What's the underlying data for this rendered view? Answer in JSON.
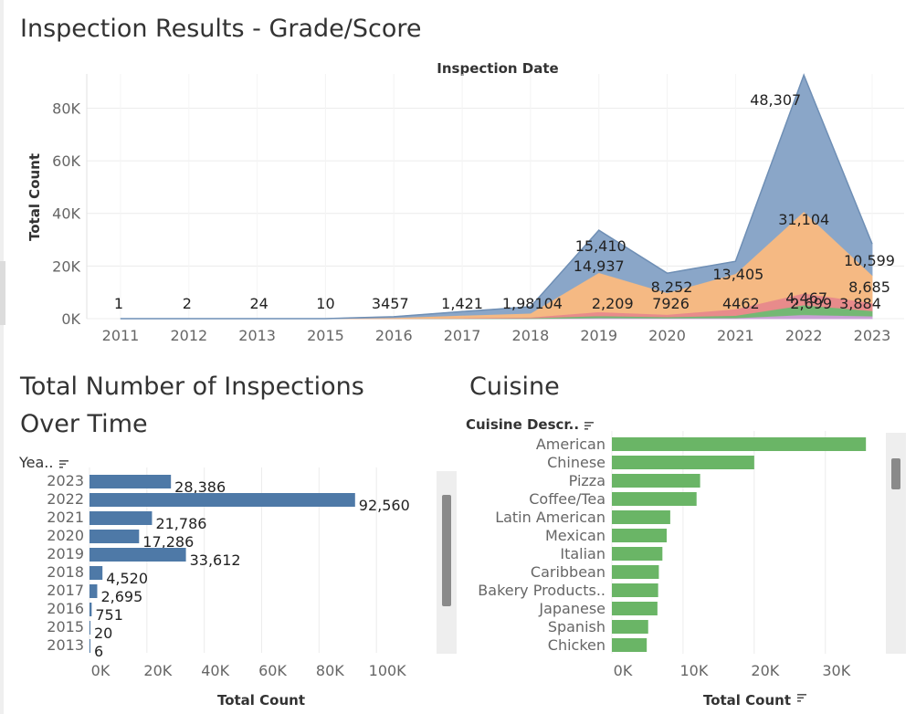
{
  "titles": {
    "inspection_results": "Inspection Results - Grade/Score",
    "total_number_line1": "Total Number of Inspections",
    "total_number_line2": "Over Time",
    "cuisine": "Cuisine"
  },
  "colors": {
    "blue_area": "#8aa6c8",
    "orange_area": "#f5b983",
    "red_area": "#e88b8b",
    "green_area": "#74b874",
    "purple_area": "#c9a0d6",
    "blue_bar": "#4e79a7",
    "green_bar": "#6ab566",
    "grid": "#ececec",
    "tick_text": "#666666"
  },
  "chart_data": [
    {
      "type": "area",
      "title": "Inspection Results - Grade/Score",
      "xlabel": "Inspection Date",
      "ylabel": "Total Count",
      "ylim": [
        0,
        93000
      ],
      "y_ticks": [
        0,
        20000,
        40000,
        60000,
        80000
      ],
      "y_tick_labels": [
        "0K",
        "20K",
        "40K",
        "60K",
        "80K"
      ],
      "x": [
        "2011",
        "2012",
        "2013",
        "2015",
        "2016",
        "2017",
        "2018",
        "2019",
        "2020",
        "2021",
        "2022",
        "2023"
      ],
      "stack_totals": [
        1,
        2,
        6,
        20,
        751,
        2695,
        4520,
        33612,
        17286,
        21786,
        92560,
        28386
      ],
      "series": [
        {
          "color_key": "purple_area",
          "values": [
            0,
            0,
            0,
            0,
            10,
            30,
            60,
            300,
            200,
            300,
            1500,
            1000
          ]
        },
        {
          "color_key": "green_area",
          "values": [
            0,
            0,
            0,
            0,
            30,
            100,
            200,
            800,
            500,
            900,
            3700,
            2000
          ]
        },
        {
          "color_key": "red_area",
          "values": [
            0,
            0,
            0,
            0,
            50,
            150,
            300,
            1500,
            900,
            2500,
            4467,
            3000
          ]
        },
        {
          "color_key": "orange_area",
          "values": [
            0,
            0,
            2,
            5,
            300,
            1000,
            1500,
            14937,
            8252,
            13405,
            31104,
            10599
          ]
        },
        {
          "color_key": "blue_area",
          "values": [
            1,
            2,
            4,
            15,
            361,
            1415,
            2460,
            16075,
            7434,
            4681,
            51789,
            11787
          ]
        }
      ],
      "labels": [
        {
          "x": "2011",
          "text": "1"
        },
        {
          "x": "2012",
          "text": "2"
        },
        {
          "x": "2013",
          "text": "24"
        },
        {
          "x": "2015",
          "text": "10"
        },
        {
          "x": "2016",
          "text": "3457"
        },
        {
          "x": "2017",
          "text": "1,421"
        },
        {
          "x": "2018",
          "text": "1,98104"
        },
        {
          "x": "2019",
          "text": "15,410"
        },
        {
          "x": "2019",
          "text": "14,937"
        },
        {
          "x": "2019",
          "text": "2,209"
        },
        {
          "x": "2020",
          "text": "8,252"
        },
        {
          "x": "2020",
          "text": "7926"
        },
        {
          "x": "2021",
          "text": "13,405"
        },
        {
          "x": "2021",
          "text": "4462"
        },
        {
          "x": "2022",
          "text": "48,307"
        },
        {
          "x": "2022",
          "text": "31,104"
        },
        {
          "x": "2022",
          "text": "4,467"
        },
        {
          "x": "2022",
          "text": "2,699"
        },
        {
          "x": "2023",
          "text": "10,599"
        },
        {
          "x": "2023",
          "text": "8,685"
        },
        {
          "x": "2023",
          "text": "3,884"
        }
      ]
    },
    {
      "type": "bar",
      "title": "Total Number of Inspections Over Time",
      "orientation": "horizontal",
      "row_header": "Yea..",
      "categories": [
        "2023",
        "2022",
        "2021",
        "2020",
        "2019",
        "2018",
        "2017",
        "2016",
        "2015",
        "2013"
      ],
      "values": [
        28386,
        92560,
        21786,
        17286,
        33612,
        4520,
        2695,
        751,
        20,
        6
      ],
      "value_labels": [
        "28,386",
        "92,560",
        "21,786",
        "17,286",
        "33,612",
        "4,520",
        "2,695",
        "751",
        "20",
        "6"
      ],
      "xlabel": "Total Count",
      "xlim": [
        0,
        120000
      ],
      "x_ticks": [
        0,
        20000,
        40000,
        60000,
        80000,
        100000
      ],
      "x_tick_labels": [
        "0K",
        "20K",
        "40K",
        "60K",
        "80K",
        "100K"
      ]
    },
    {
      "type": "bar",
      "title": "Cuisine",
      "orientation": "horizontal",
      "row_header": "Cuisine Descr..",
      "categories": [
        "American",
        "Chinese",
        "Pizza",
        "Coffee/Tea",
        "Latin American",
        "Mexican",
        "Italian",
        "Caribbean",
        "Bakery Products..",
        "Japanese",
        "Spanish",
        "Chicken"
      ],
      "values": [
        35700,
        20000,
        12400,
        11900,
        8200,
        7700,
        7100,
        6600,
        6500,
        6400,
        5100,
        4900
      ],
      "xlabel": "Total Count",
      "xlim": [
        0,
        38500
      ],
      "x_ticks": [
        0,
        10000,
        20000,
        30000
      ],
      "x_tick_labels": [
        "0K",
        "10K",
        "20K",
        "30K"
      ]
    }
  ]
}
